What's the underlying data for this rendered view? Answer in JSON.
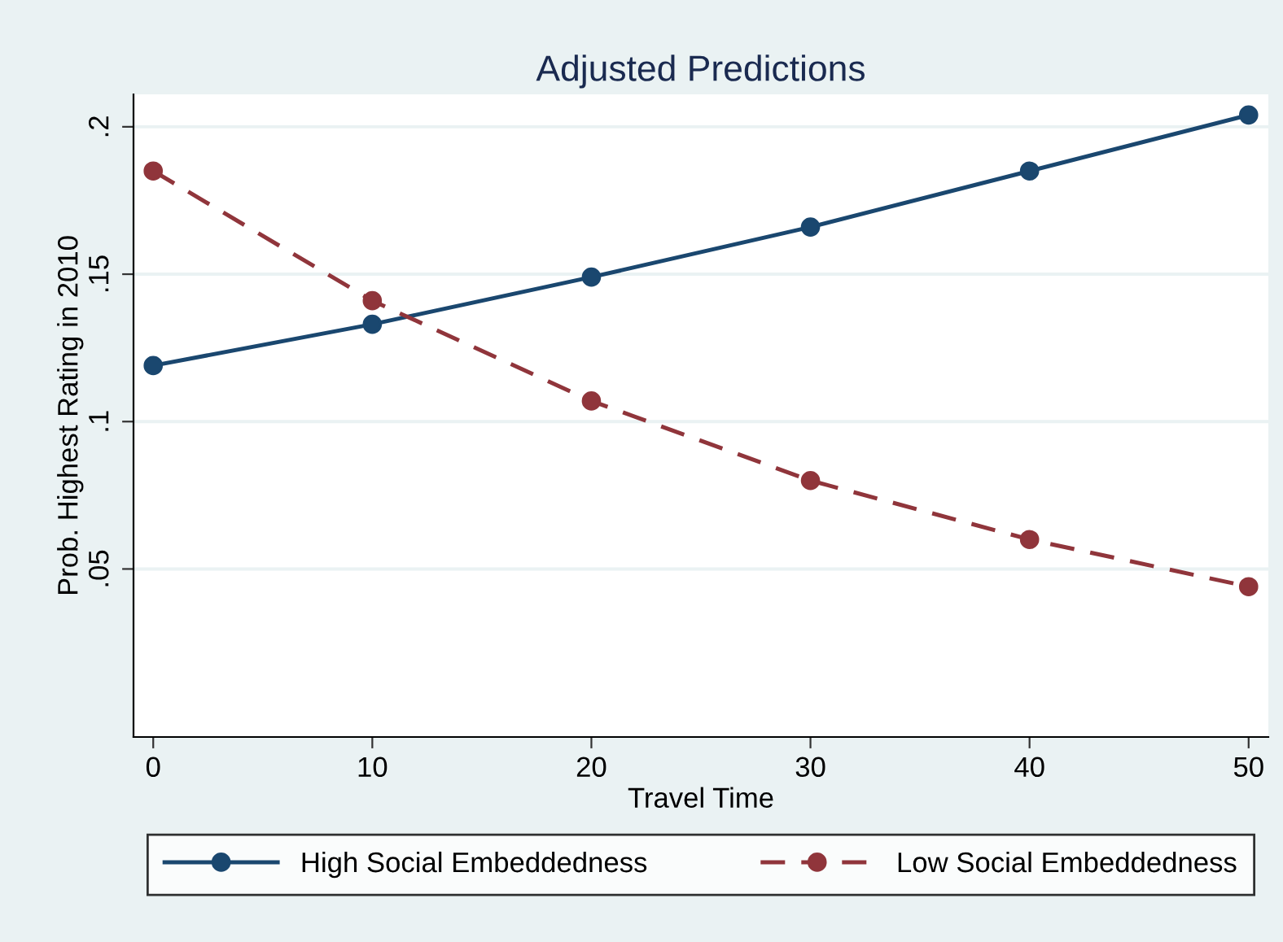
{
  "chart_data": {
    "type": "line",
    "title": "Adjusted Predictions",
    "xlabel": "Travel Time",
    "ylabel": "Prob. Highest Rating in 2010",
    "x": [
      0,
      10,
      20,
      30,
      40,
      50
    ],
    "series": [
      {
        "name": "High Social Embeddedness",
        "color": "#1a476f",
        "values": [
          0.119,
          0.133,
          0.149,
          0.166,
          0.185,
          0.204
        ],
        "line_style": "solid"
      },
      {
        "name": "Low Social Embeddedness",
        "color": "#90353b",
        "values": [
          0.185,
          0.141,
          0.107,
          0.08,
          0.06,
          0.044
        ],
        "line_style": "dashed"
      }
    ],
    "xlim": [
      -0.9,
      50.9
    ],
    "ylim": [
      -0.007,
      0.211
    ],
    "xticks": [
      0,
      10,
      20,
      30,
      40,
      50
    ],
    "yticks": [
      {
        "value": 0.05,
        "label": ".05"
      },
      {
        "value": 0.1,
        "label": ".1"
      },
      {
        "value": 0.15,
        "label": ".15"
      },
      {
        "value": 0.2,
        "label": ".2"
      }
    ],
    "grid": "y",
    "legend": "bottom",
    "marker": "circle"
  }
}
